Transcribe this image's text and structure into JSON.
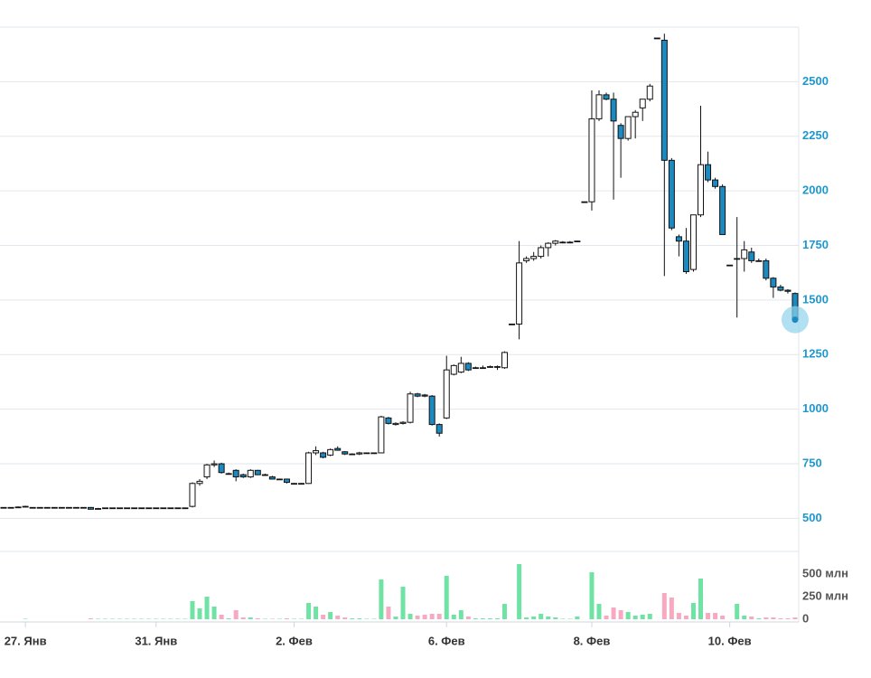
{
  "chart_data": {
    "type": "candlestick",
    "categories": [
      null,
      null,
      null,
      "27. Янв",
      null,
      null,
      null,
      null,
      null,
      null,
      null,
      null,
      null,
      null,
      null,
      null,
      null,
      null,
      null,
      null,
      null,
      "31. Янв",
      null,
      null,
      null,
      null,
      null,
      null,
      null,
      null,
      null,
      null,
      null,
      null,
      null,
      null,
      null,
      null,
      null,
      null,
      "2. Фев",
      null,
      null,
      null,
      null,
      null,
      null,
      null,
      null,
      null,
      null,
      null,
      null,
      null,
      null,
      null,
      null,
      null,
      null,
      null,
      null,
      "6. Фев",
      null,
      null,
      null,
      null,
      null,
      null,
      null,
      null,
      null,
      null,
      null,
      null,
      null,
      null,
      null,
      null,
      null,
      null,
      null,
      "8. Фев",
      null,
      null,
      null,
      null,
      null,
      null,
      null,
      null,
      null,
      null,
      null,
      null,
      null,
      null,
      null,
      null,
      null,
      null,
      "10. Фев",
      null,
      null,
      null,
      null,
      null,
      null,
      null,
      null,
      null
    ],
    "open": [
      550,
      550,
      552,
      555,
      550,
      550,
      550,
      550,
      550,
      550,
      550,
      550,
      550,
      545,
      548,
      548,
      548,
      548,
      548,
      548,
      548,
      548,
      548,
      548,
      548,
      548,
      555,
      660,
      690,
      745,
      750,
      705,
      720,
      700,
      690,
      720,
      700,
      690,
      680,
      680,
      660,
      660,
      660,
      800,
      800,
      790,
      820,
      805,
      795,
      795,
      800,
      800,
      800,
      960,
      930,
      935,
      940,
      1070,
      1065,
      1060,
      930,
      960,
      1160,
      1170,
      1210,
      1190,
      1190,
      1195,
      1195,
      1190,
      1390,
      1390,
      1680,
      1690,
      1700,
      1740,
      1760,
      1765,
      1765,
      1770,
      1950,
      1950,
      2330,
      2440,
      2420,
      2300,
      2240,
      2340,
      2380,
      2420,
      2700,
      2690,
      2140,
      1790,
      1770,
      1640,
      1890,
      2120,
      2050,
      2020,
      1660,
      1690,
      1690,
      1720,
      1680,
      1680,
      1600,
      1560,
      1545,
      1530
    ],
    "high": [
      550,
      550,
      555,
      558,
      550,
      550,
      550,
      550,
      550,
      550,
      550,
      550,
      552,
      548,
      548,
      548,
      548,
      548,
      548,
      548,
      548,
      548,
      548,
      548,
      548,
      548,
      665,
      680,
      750,
      765,
      755,
      710,
      725,
      705,
      725,
      722,
      705,
      695,
      682,
      682,
      662,
      662,
      805,
      830,
      805,
      820,
      830,
      808,
      798,
      805,
      802,
      802,
      970,
      965,
      940,
      945,
      1080,
      1075,
      1070,
      1065,
      935,
      1245,
      1205,
      1240,
      1215,
      1195,
      1200,
      1200,
      1200,
      1265,
      1390,
      1770,
      1700,
      1720,
      1750,
      1765,
      1775,
      1770,
      1770,
      1772,
      1950,
      2460,
      2460,
      2450,
      2450,
      2310,
      2340,
      2370,
      2420,
      2490,
      2700,
      2720,
      2150,
      1800,
      1830,
      1890,
      2390,
      2180,
      2060,
      2030,
      1660,
      1880,
      1770,
      1740,
      1690,
      1690,
      1605,
      1570,
      1550,
      1535
    ],
    "low": [
      550,
      550,
      550,
      552,
      550,
      550,
      550,
      550,
      550,
      550,
      550,
      550,
      540,
      542,
      548,
      548,
      548,
      548,
      548,
      548,
      548,
      548,
      548,
      548,
      548,
      548,
      550,
      650,
      680,
      735,
      705,
      700,
      670,
      685,
      685,
      698,
      695,
      678,
      676,
      660,
      658,
      658,
      658,
      790,
      775,
      785,
      810,
      790,
      790,
      790,
      796,
      796,
      798,
      930,
      925,
      930,
      935,
      1055,
      1055,
      925,
      875,
      955,
      1155,
      1165,
      1175,
      1185,
      1185,
      1190,
      1180,
      1185,
      1390,
      1320,
      1670,
      1680,
      1690,
      1700,
      1750,
      1760,
      1760,
      1768,
      1950,
      1910,
      2320,
      2415,
      1960,
      2060,
      2230,
      2240,
      2320,
      2410,
      2700,
      1610,
      1820,
      1700,
      1620,
      1630,
      1880,
      2040,
      2010,
      1800,
      1660,
      1420,
      1630,
      1670,
      1675,
      1590,
      1510,
      1540,
      1530,
      1400
    ],
    "close": [
      550,
      550,
      552,
      555,
      550,
      550,
      550,
      550,
      550,
      550,
      550,
      550,
      542,
      545,
      548,
      548,
      548,
      548,
      548,
      548,
      548,
      548,
      548,
      548,
      548,
      548,
      660,
      670,
      745,
      750,
      710,
      705,
      690,
      690,
      720,
      700,
      700,
      680,
      680,
      665,
      660,
      660,
      800,
      810,
      780,
      815,
      812,
      795,
      795,
      800,
      800,
      800,
      965,
      935,
      935,
      940,
      1070,
      1060,
      1060,
      930,
      890,
      1180,
      1200,
      1210,
      1180,
      1190,
      1190,
      1195,
      1195,
      1260,
      1390,
      1670,
      1690,
      1700,
      1740,
      1760,
      1770,
      1765,
      1765,
      1770,
      1950,
      2330,
      2440,
      2420,
      2320,
      2240,
      2340,
      2360,
      2420,
      2480,
      2700,
      2140,
      1830,
      1770,
      1630,
      1890,
      2120,
      2050,
      2020,
      1800,
      1660,
      1690,
      1730,
      1680,
      1680,
      1600,
      1560,
      1545,
      1540,
      1410
    ],
    "volume": [
      0,
      0,
      0,
      5,
      0,
      0,
      0,
      0,
      0,
      0,
      0,
      0,
      10,
      5,
      5,
      5,
      5,
      5,
      5,
      5,
      5,
      5,
      5,
      5,
      5,
      5,
      200,
      120,
      250,
      140,
      50,
      10,
      100,
      20,
      20,
      10,
      5,
      5,
      5,
      10,
      5,
      5,
      180,
      140,
      50,
      80,
      40,
      20,
      10,
      10,
      5,
      5,
      440,
      140,
      30,
      360,
      60,
      40,
      50,
      60,
      60,
      480,
      50,
      100,
      30,
      10,
      10,
      10,
      10,
      170,
      0,
      610,
      20,
      30,
      60,
      30,
      20,
      5,
      5,
      30,
      0,
      520,
      170,
      40,
      130,
      100,
      80,
      40,
      50,
      60,
      0,
      290,
      240,
      70,
      40,
      180,
      450,
      70,
      70,
      40,
      0,
      170,
      40,
      30,
      10,
      20,
      20,
      10,
      10,
      20
    ],
    "ylim": [
      390,
      2750
    ],
    "yticks": [
      500,
      750,
      1000,
      1250,
      1500,
      1750,
      2000,
      2250,
      2500
    ],
    "volume_ylim": [
      0,
      750
    ],
    "volume_yticks": [
      0,
      {
        "value": 250,
        "label": "250 млн"
      },
      {
        "value": 500,
        "label": "500 млн"
      }
    ],
    "grid": true,
    "up_color": "#ffffff",
    "down_color": "#1a8ac0",
    "volume_up_color": "#6fe3a4",
    "volume_down_color": "#f8a9c2",
    "highlight_color": "#8fd3ec"
  }
}
